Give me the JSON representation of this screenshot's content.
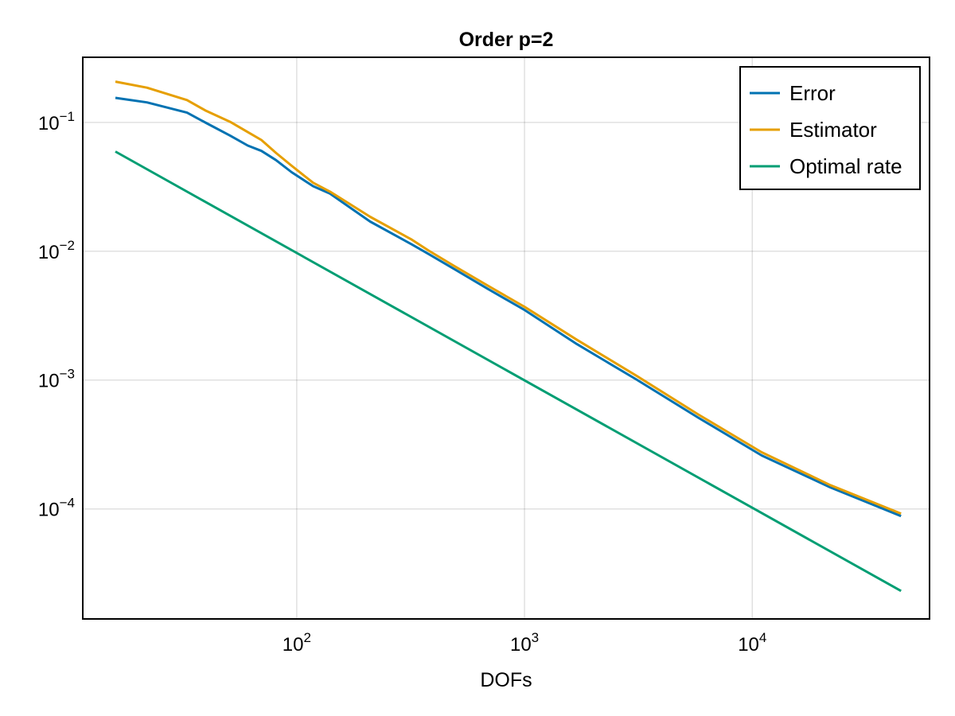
{
  "chart_data": {
    "type": "line",
    "title": "Order p=2",
    "xlabel": "DOFs",
    "ylabel": "",
    "xscale": "log",
    "yscale": "log",
    "xlim": [
      11.5,
      60000
    ],
    "ylim": [
      1.4e-05,
      0.32
    ],
    "xticks": [
      {
        "value": 100,
        "base": "10",
        "exp": "2"
      },
      {
        "value": 1000,
        "base": "10",
        "exp": "3"
      },
      {
        "value": 10000,
        "base": "10",
        "exp": "4"
      }
    ],
    "yticks": [
      {
        "value": 0.1,
        "base": "10",
        "exp": "−1"
      },
      {
        "value": 0.01,
        "base": "10",
        "exp": "−2"
      },
      {
        "value": 0.001,
        "base": "10",
        "exp": "−3"
      },
      {
        "value": 0.0001,
        "base": "10",
        "exp": "−4"
      }
    ],
    "grid": true,
    "legend_position": "top-right",
    "series": [
      {
        "name": "Error",
        "color": "#0072b2",
        "x": [
          16,
          22,
          33,
          40,
          51,
          61,
          70,
          81,
          95,
          118,
          140,
          210,
          320,
          380,
          490,
          690,
          1000,
          1700,
          3100,
          5800,
          11000,
          22000,
          45000
        ],
        "y": [
          0.155,
          0.143,
          0.119,
          0.099,
          0.079,
          0.066,
          0.06,
          0.051,
          0.041,
          0.032,
          0.028,
          0.017,
          0.0113,
          0.0095,
          0.0073,
          0.0051,
          0.0035,
          0.0019,
          0.00101,
          0.00051,
          0.00026,
          0.000147,
          8.8e-05
        ]
      },
      {
        "name": "Estimator",
        "color": "#e69f00",
        "x": [
          16,
          22,
          33,
          40,
          51,
          61,
          70,
          81,
          95,
          118,
          140,
          210,
          320,
          380,
          490,
          690,
          1000,
          1700,
          3100,
          5800,
          11000,
          22000,
          45000
        ],
        "y": [
          0.207,
          0.186,
          0.149,
          0.123,
          0.101,
          0.084,
          0.073,
          0.058,
          0.046,
          0.034,
          0.029,
          0.0185,
          0.0123,
          0.0101,
          0.0077,
          0.0054,
          0.0037,
          0.00205,
          0.00108,
          0.00054,
          0.000275,
          0.000153,
          9.2e-05
        ]
      },
      {
        "name": "Optimal rate",
        "color": "#009e73",
        "x": [
          16,
          45000
        ],
        "y": [
          0.0594,
          2.31e-05
        ]
      }
    ]
  }
}
